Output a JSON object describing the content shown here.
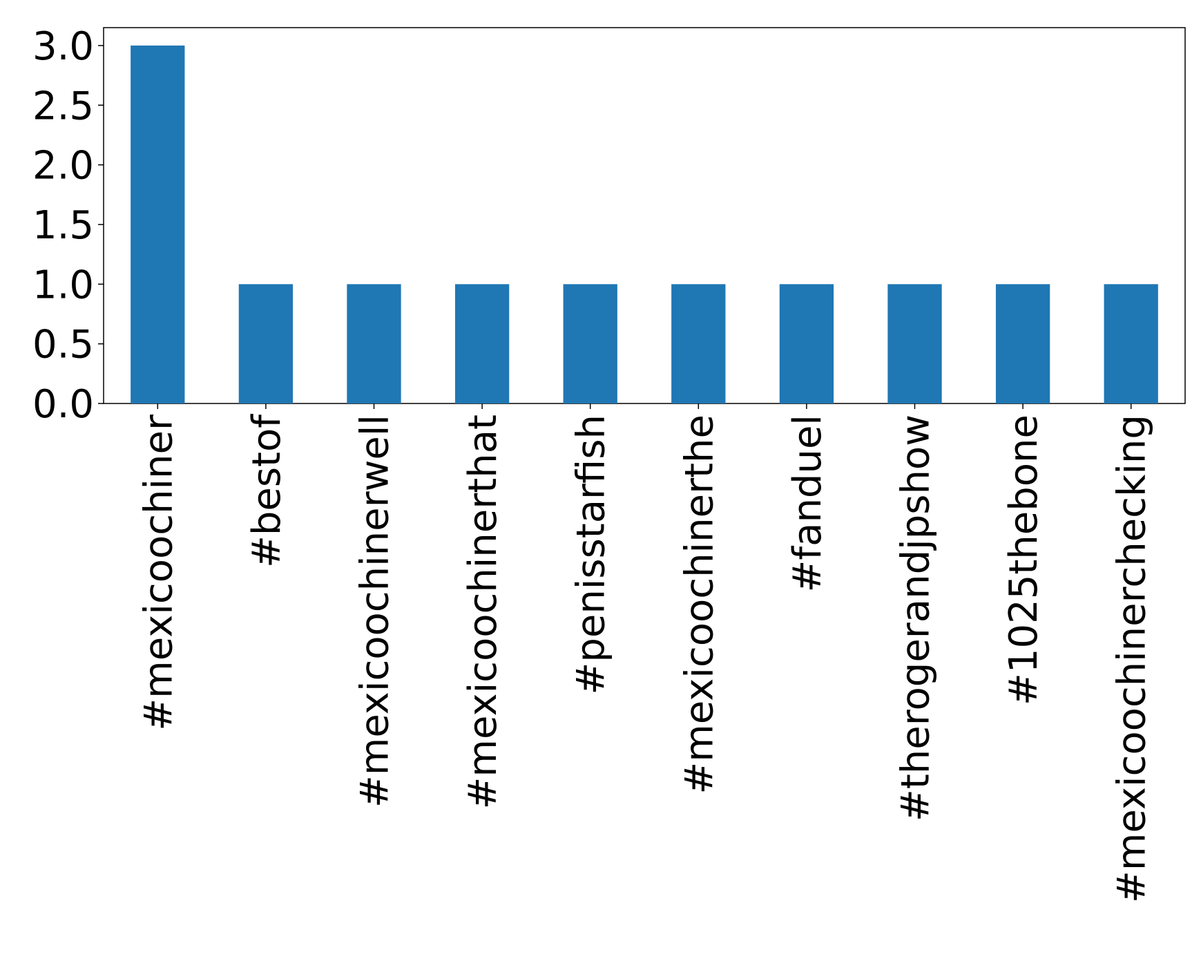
{
  "chart_data": {
    "type": "bar",
    "categories": [
      "#mexicoochiner",
      "#bestof",
      "#mexicoochinerwell",
      "#mexicoochinerthat",
      "#penisstarfish",
      "#mexicoochinerthe",
      "#fanduel",
      "#therogerandjpshow",
      "#1025thebone",
      "#mexicoochinerchecking"
    ],
    "values": [
      3,
      1,
      1,
      1,
      1,
      1,
      1,
      1,
      1,
      1
    ],
    "color": "#1f77b4",
    "ylim": [
      0,
      3.15
    ],
    "yticks": [
      {
        "value": 0,
        "label": "0.0"
      },
      0.5,
      {
        "value": 1,
        "label": "1.0"
      },
      1.5,
      {
        "value": 2,
        "label": "2.0"
      },
      2.5,
      {
        "value": 3,
        "label": "3.0"
      }
    ],
    "grid": false
  }
}
